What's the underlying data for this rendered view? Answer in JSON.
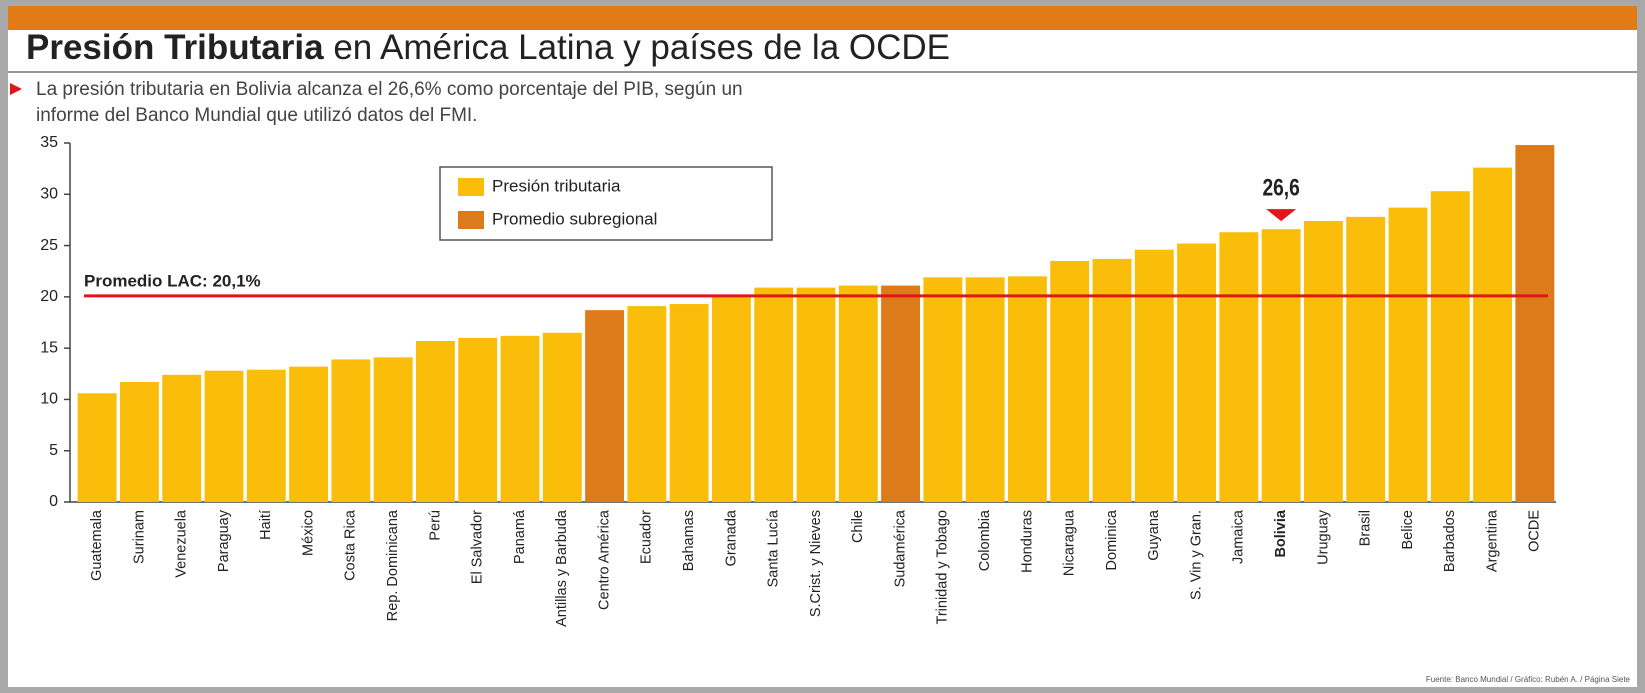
{
  "chart_data": {
    "type": "bar",
    "title": [
      "Presión Tributaria",
      " en América Latina y países de la OCDE"
    ],
    "subtitle": [
      "La presión tributaria en Bolivia alcanza el 26,6% como porcentaje del PIB, según un",
      "informe del Banco Mundial que utilizó datos del FMI."
    ],
    "categories": [
      "Guatemala",
      "Surinam",
      "Venezuela",
      "Paraguay",
      "Haití",
      "México",
      "Costa Rica",
      "Rep. Dominicana",
      "Perú",
      "El Salvador",
      "Panamá",
      "Antillas y Barbuda",
      "Centro América",
      "Ecuador",
      "Bahamas",
      "Granada",
      "Santa Lucía",
      "S.Crist. y Nieves",
      "Chile",
      "Sudamérica",
      "Trinidad y Tobago",
      "Colombia",
      "Honduras",
      "Nicaragua",
      "Dominica",
      "Guyana",
      "S. Vin y Gran.",
      "Jamaica",
      "Bolivia",
      "Uruguay",
      "Brasil",
      "Belice",
      "Barbados",
      "Argentina",
      "OCDE"
    ],
    "series": [
      {
        "name": "Presión tributaria",
        "color": "#f9bd0a",
        "values": [
          10.6,
          11.7,
          12.4,
          12.8,
          12.9,
          13.2,
          13.9,
          14.1,
          15.7,
          16.0,
          16.2,
          16.5,
          null,
          19.1,
          19.3,
          20.1,
          20.9,
          20.9,
          21.1,
          null,
          21.9,
          21.9,
          22.0,
          23.5,
          23.7,
          24.6,
          25.2,
          26.3,
          26.6,
          27.4,
          27.8,
          28.7,
          30.3,
          32.6,
          null
        ],
        "value_labels": [
          null,
          null,
          null,
          null,
          null,
          null,
          null,
          null,
          null,
          null,
          null,
          null,
          null,
          null,
          null,
          null,
          null,
          null,
          null,
          null,
          null,
          null,
          null,
          null,
          null,
          null,
          null,
          null,
          "26,6",
          null,
          null,
          null,
          null,
          null,
          null
        ]
      },
      {
        "name": "Promedio subregional",
        "color": "#dd7a1a",
        "values": [
          null,
          null,
          null,
          null,
          null,
          null,
          null,
          null,
          null,
          null,
          null,
          null,
          18.7,
          null,
          null,
          null,
          null,
          null,
          null,
          21.1,
          null,
          null,
          null,
          null,
          null,
          null,
          null,
          null,
          null,
          null,
          null,
          null,
          null,
          null,
          34.8
        ]
      }
    ],
    "reference_line": {
      "value": 20.1,
      "label": "Promedio LAC: 20,1%",
      "color": "#e0161b"
    },
    "ylim": [
      0,
      35
    ],
    "yticks": [
      0,
      5,
      10,
      15,
      20,
      25,
      30,
      35
    ],
    "source": "Fuente: Banco Mundial / Gráfico: Rubén A. / Página Siete"
  }
}
